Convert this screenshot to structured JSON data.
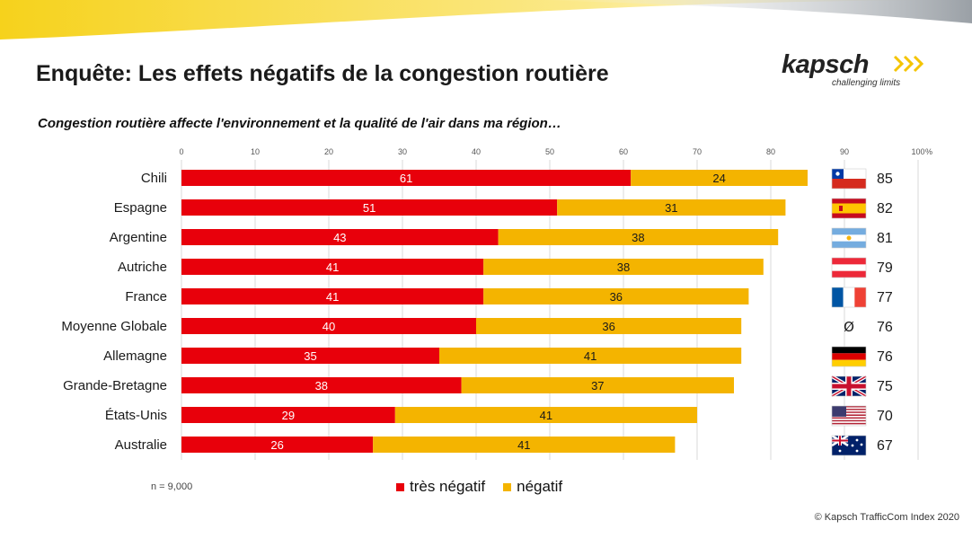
{
  "title": "Enquête: Les effets négatifs de la congestion routière",
  "subtitle": "Congestion routière affecte l'environnement et la qualité de l'air dans ma région…",
  "logo": {
    "name": "kapsch",
    "tagline": "challenging limits",
    "arrows": ">>>"
  },
  "sample_note": "n = 9,000",
  "copyright": "© Kapsch TrafficCom Index 2020",
  "legend": [
    {
      "label": "très négatif",
      "color": "#e8000b"
    },
    {
      "label": "négatif",
      "color": "#f4b400"
    }
  ],
  "chart_data": {
    "type": "bar",
    "orientation": "horizontal",
    "stacked": true,
    "title": "Congestion routière affecte l'environnement et la qualité de l'air dans ma région…",
    "xlim": [
      0,
      100
    ],
    "xticks": [
      "0",
      "10",
      "20",
      "30",
      "40",
      "50",
      "60",
      "70",
      "80",
      "90",
      "100"
    ],
    "x_unit": "%",
    "categories": [
      "Chili",
      "Espagne",
      "Argentine",
      "Autriche",
      "France",
      "Moyenne Globale",
      "Allemagne",
      "Grande-Bretagne",
      "États-Unis",
      "Australie"
    ],
    "series": [
      {
        "name": "très négatif",
        "color": "#e8000b",
        "values": [
          61,
          51,
          43,
          41,
          41,
          40,
          35,
          38,
          29,
          26
        ]
      },
      {
        "name": "négatif",
        "color": "#f4b400",
        "values": [
          24,
          31,
          38,
          38,
          36,
          36,
          41,
          37,
          41,
          41
        ]
      }
    ],
    "totals": [
      85,
      82,
      81,
      79,
      77,
      76,
      76,
      75,
      70,
      67
    ],
    "total_markers": [
      "flag-chile",
      "flag-spain",
      "flag-argentina",
      "flag-austria",
      "flag-france",
      "Ø",
      "flag-germany",
      "flag-uk",
      "flag-usa",
      "flag-australia"
    ]
  }
}
